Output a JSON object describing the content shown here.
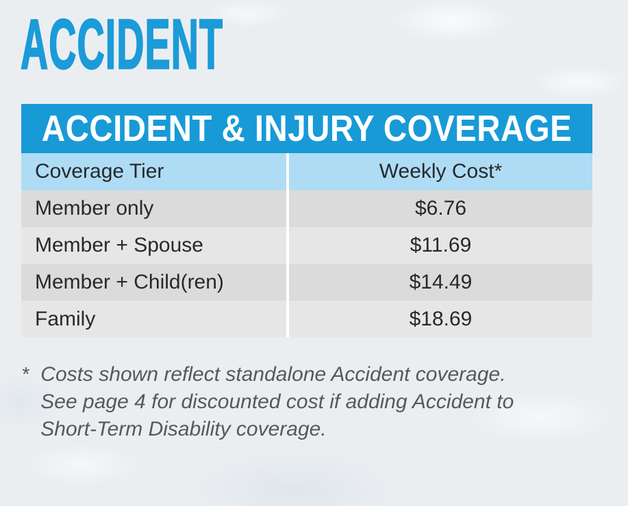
{
  "page": {
    "title": "ACCIDENT"
  },
  "table": {
    "header": "ACCIDENT & INJURY COVERAGE",
    "columns": [
      "Coverage Tier",
      "Weekly Cost*"
    ],
    "rows": [
      {
        "tier": "Member only",
        "cost": "$6.76"
      },
      {
        "tier": "Member + Spouse",
        "cost": "$11.69"
      },
      {
        "tier": "Member + Child(ren)",
        "cost": "$14.49"
      },
      {
        "tier": "Family",
        "cost": "$18.69"
      }
    ]
  },
  "footnote": {
    "marker": "*",
    "lines": [
      "Costs shown reflect standalone Accident coverage.",
      "See page 4 for discounted cost if adding Accident to",
      "Short-Term Disability coverage."
    ]
  },
  "colors": {
    "accent": "#1B9BD8",
    "band_blue": "#189AD7",
    "light_blue": "#AEDCF4",
    "row_dark": "#DBDBDC",
    "row_light": "#E6E6E7",
    "page_bg": "#EBEEF1",
    "text_dark": "#26292B",
    "footnote_gray": "#56595C"
  }
}
